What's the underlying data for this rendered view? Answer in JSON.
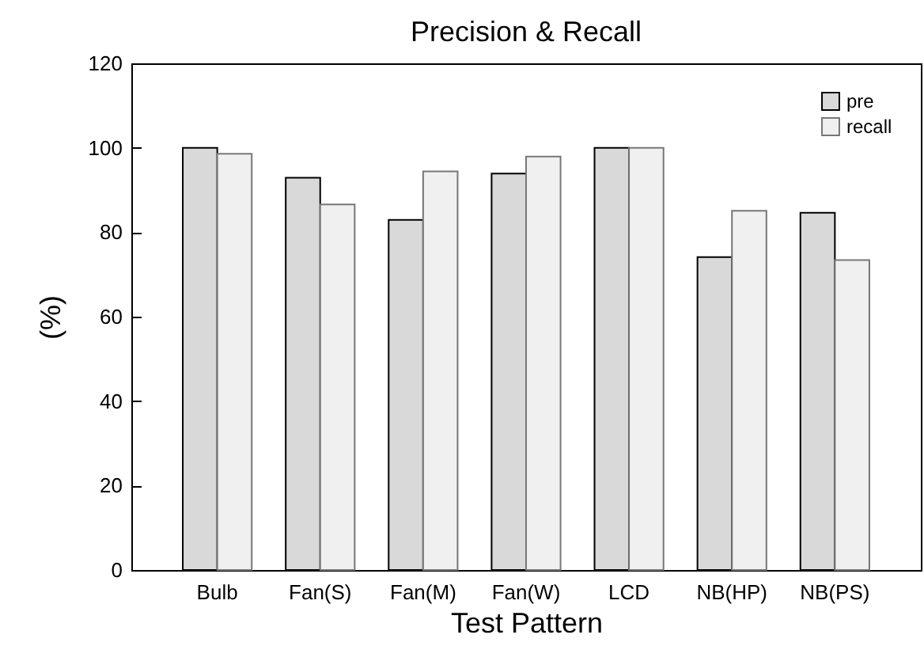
{
  "chart_data": {
    "type": "bar",
    "title": "Precision & Recall",
    "xlabel": "Test Pattern",
    "ylabel": "(%)",
    "categories": [
      "Bulb",
      "Fan(S)",
      "Fan(M)",
      "Fan(W)",
      "LCD",
      "NB(HP)",
      "NB(PS)"
    ],
    "series": [
      {
        "name": "pre",
        "color": "#d9d9d9",
        "values": [
          100,
          92.9,
          82.9,
          93.9,
          100,
          74.1,
          84.6
        ]
      },
      {
        "name": "recall",
        "color": "#f0f0f0",
        "values": [
          98.6,
          86.6,
          94.4,
          97.9,
          100,
          85.1,
          73.4
        ]
      }
    ],
    "ylim": [
      0,
      120
    ],
    "yticks": [
      0,
      20,
      40,
      60,
      80,
      100,
      120
    ],
    "legend": "top right"
  }
}
